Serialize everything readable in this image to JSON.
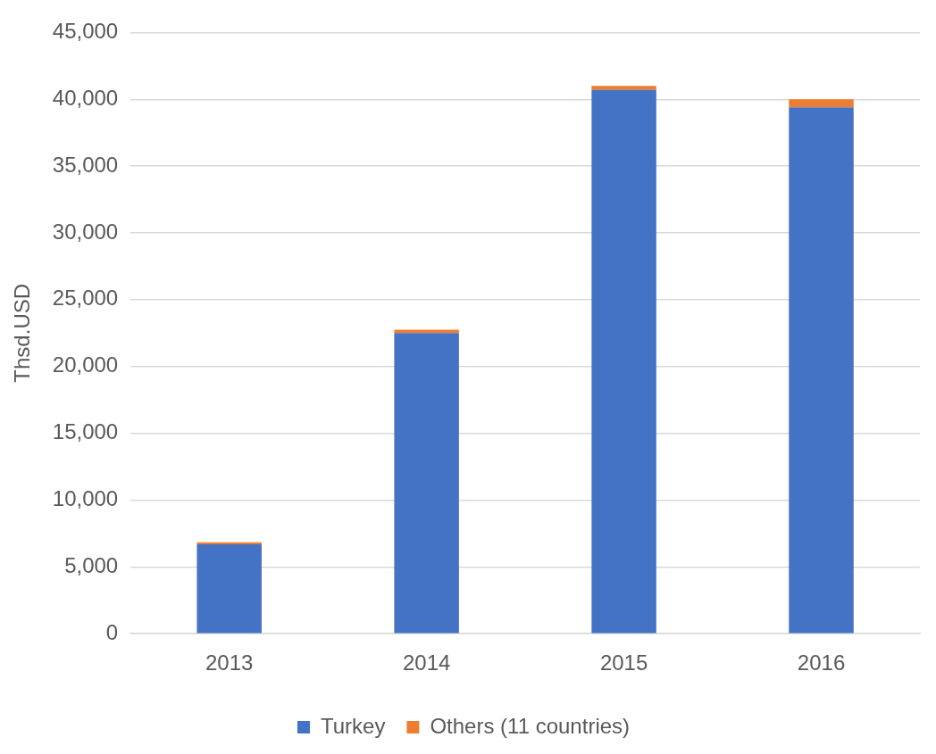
{
  "chart_data": {
    "type": "bar",
    "ylabel": "Thsd.USD",
    "categories": [
      "2013",
      "2014",
      "2015",
      "2016"
    ],
    "series": [
      {
        "name": "Turkey",
        "color": "#4472c4",
        "values": [
          6700,
          22500,
          40700,
          39400
        ]
      },
      {
        "name": "Others (11 countries)",
        "color": "#ed7d31",
        "values": [
          150,
          260,
          300,
          600
        ]
      }
    ],
    "stacked": true,
    "ylim": [
      0,
      45000
    ],
    "yticks": [
      0,
      {
        "value": 5000,
        "label": "5,000"
      },
      {
        "value": 10000,
        "label": "10,000"
      },
      {
        "value": 15000,
        "label": "15,000"
      },
      {
        "value": 20000,
        "label": "20,000"
      },
      {
        "value": 25000,
        "label": "25,000"
      },
      {
        "value": 30000,
        "label": "30,000"
      },
      {
        "value": 35000,
        "label": "35,000"
      },
      {
        "value": 40000,
        "label": "40,000"
      },
      {
        "value": 45000,
        "label": "45,000"
      }
    ],
    "grid": "y",
    "legend": "bottom"
  }
}
